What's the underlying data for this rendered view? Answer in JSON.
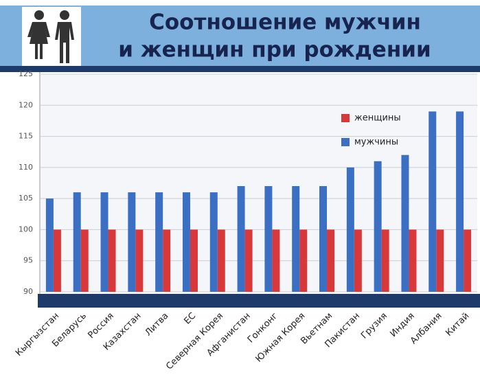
{
  "chart_data": {
    "type": "bar",
    "title": [
      "Соотношение мужчин",
      "и женщин при рождении"
    ],
    "categories": [
      "Кыргызстан",
      "Беларусь",
      "Россия",
      "Казахстан",
      "Литва",
      "ЕС",
      "Северная Корея",
      "Афганистан",
      "Гонконг",
      "Южная Корея",
      "Вьетнам",
      "Пакистан",
      "Грузия",
      "Индия",
      "Албания",
      "Китай"
    ],
    "series": [
      {
        "name": "женщины",
        "color": "#d9383a",
        "values": [
          100,
          100,
          100,
          100,
          100,
          100,
          100,
          100,
          100,
          100,
          100,
          100,
          100,
          100,
          100,
          100
        ]
      },
      {
        "name": "мужчины",
        "color": "#3b6fc4",
        "values": [
          105,
          106,
          106,
          106,
          106,
          106,
          106,
          107,
          107,
          107,
          107,
          110,
          111,
          112,
          119,
          119
        ]
      }
    ],
    "ylim": [
      90,
      125
    ],
    "yticks": [
      90,
      95,
      100,
      105,
      110,
      115,
      120,
      125
    ],
    "grid": true
  }
}
